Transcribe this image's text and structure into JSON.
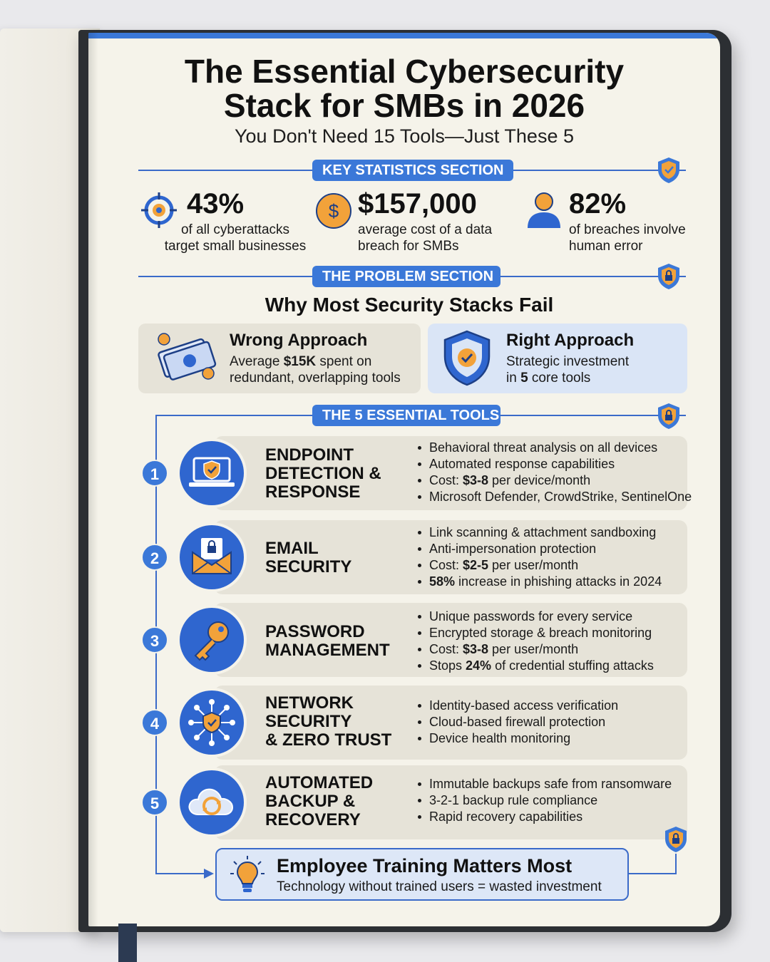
{
  "header": {
    "title_line1": "The Essential Cybersecurity",
    "title_line2": "Stack for SMBs in 2026",
    "subtitle": "You Don't Need 15 Tools—Just These 5"
  },
  "sections": {
    "stats": "KEY STATISTICS SECTION",
    "problem": "THE PROBLEM SECTION",
    "tools": "THE 5 ESSENTIAL TOOLS"
  },
  "stats": [
    {
      "value": "43%",
      "desc_line1": "of all cyberattacks",
      "desc_line2": "target small businesses",
      "icon": "target-icon"
    },
    {
      "value": "$157,000",
      "desc_line1": "average cost of a data",
      "desc_line2": "breach for SMBs",
      "icon": "dollar-coin-icon"
    },
    {
      "value": "82%",
      "desc_line1": "of breaches involve",
      "desc_line2": "human error",
      "icon": "person-icon"
    }
  ],
  "problem": {
    "title": "Why Most Security Stacks Fail",
    "wrong": {
      "title": "Wrong Approach",
      "line1_pre": "Average ",
      "line1_bold": "$15K",
      "line1_post": " spent on",
      "line2": "redundant, overlapping tools"
    },
    "right": {
      "title": "Right Approach",
      "line1": "Strategic investment",
      "line2_pre": "in ",
      "line2_bold": "5",
      "line2_post": " core tools"
    }
  },
  "tools": [
    {
      "number": "1",
      "name": [
        "ENDPOINT",
        "DETECTION &",
        "RESPONSE"
      ],
      "icon": "laptop-shield-icon",
      "bullets": [
        "Behavioral threat analysis on all devices",
        "Automated response capabilities",
        "Cost: $3-8 per device/month",
        "Microsoft Defender, CrowdStrike, SentinelOne"
      ]
    },
    {
      "number": "2",
      "name": [
        "EMAIL",
        "SECURITY"
      ],
      "icon": "envelope-lock-icon",
      "bullets": [
        "Link scanning & attachment sandboxing",
        "Anti-impersonation protection",
        "Cost: $2-5 per user/month",
        "58% increase in phishing attacks in 2024"
      ]
    },
    {
      "number": "3",
      "name": [
        "PASSWORD",
        "MANAGEMENT"
      ],
      "icon": "key-icon",
      "bullets": [
        "Unique passwords for every service",
        "Encrypted storage & breach monitoring",
        "Cost: $3-8 per user/month",
        "Stops 24% of credential stuffing attacks"
      ]
    },
    {
      "number": "4",
      "name": [
        "NETWORK",
        "SECURITY",
        "& ZERO TRUST"
      ],
      "icon": "network-shield-icon",
      "bullets": [
        "Identity-based access verification",
        "Cloud-based firewall protection",
        "Device health monitoring"
      ]
    },
    {
      "number": "5",
      "name": [
        "AUTOMATED",
        "BACKUP &",
        "RECOVERY"
      ],
      "icon": "cloud-sync-icon",
      "bullets": [
        "Immutable backups safe from ransomware",
        "3-2-1 backup rule compliance",
        "Rapid recovery capabilities"
      ]
    }
  ],
  "training": {
    "title": "Employee Training Matters Most",
    "desc": "Technology without trained users = wasted investment"
  },
  "colors": {
    "accent": "#3b78d8",
    "orange": "#f2a23a",
    "paper": "#f5f3ea"
  }
}
